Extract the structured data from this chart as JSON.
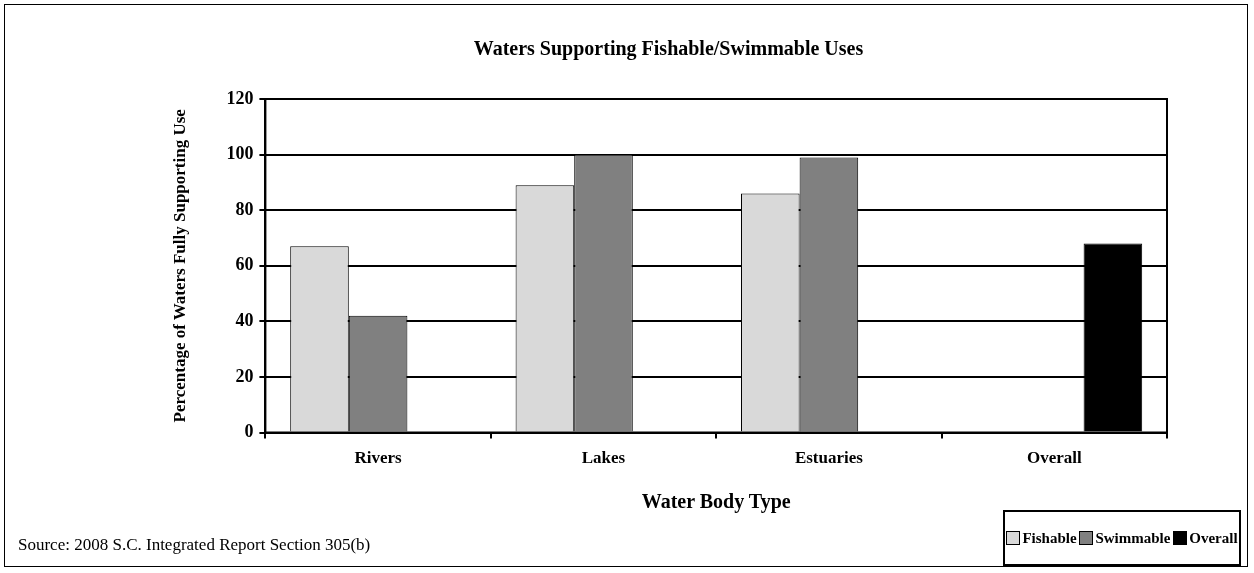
{
  "chart_data": {
    "type": "bar",
    "title": "Waters Supporting Fishable/Swimmable Uses",
    "xlabel": "Water Body Type",
    "ylabel": "Percentage of Waters Fully Supporting Use",
    "categories": [
      "Rivers",
      "Lakes",
      "Estuaries",
      "Overall"
    ],
    "series": [
      {
        "name": "Fishable",
        "color": "#d9d9d9",
        "values": [
          67,
          89,
          86,
          null
        ]
      },
      {
        "name": "Swimmable",
        "color": "#808080",
        "values": [
          42,
          100,
          99,
          null
        ]
      },
      {
        "name": "Overall",
        "color": "#000000",
        "values": [
          null,
          null,
          null,
          68
        ]
      }
    ],
    "ylim": [
      0,
      120
    ],
    "yticks": [
      0,
      20,
      40,
      60,
      80,
      100,
      120
    ],
    "grid": "y",
    "legend": "bottom right",
    "annotations": [
      "Source: 2008 S.C. Integrated Report Section 305(b)"
    ]
  }
}
